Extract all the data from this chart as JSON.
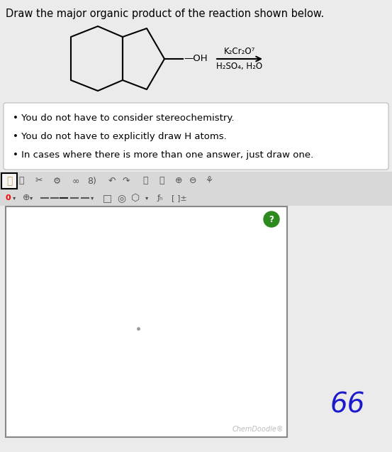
{
  "title": "Draw the major organic product of the reaction shown below.",
  "title_fontsize": 10.5,
  "bullet_points": [
    "You do not have to consider stereochemistry.",
    "You do not have to explicitly draw H atoms.",
    "In cases where there is more than one answer, just draw one."
  ],
  "reagent_line1": "K₂Cr₂O⁷",
  "reagent_line2": "H₂SO₄, H₂O",
  "chemdoodle_text": "ChemDoodle®",
  "score_text": "66",
  "bg_color": "#ebebeb",
  "white": "#ffffff",
  "black": "#000000",
  "green_circle_color": "#2d8a1e",
  "toolbar_bg": "#e0e0e0",
  "canvas_border": "#888888"
}
